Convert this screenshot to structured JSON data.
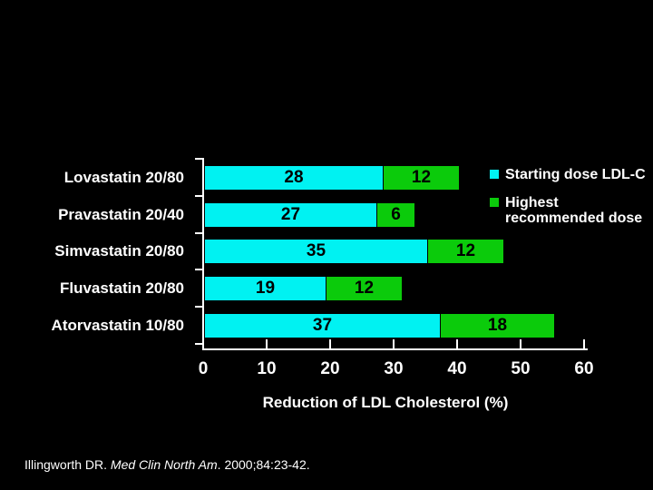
{
  "chart_data": {
    "type": "bar",
    "orientation": "horizontal",
    "stacked": true,
    "categories": [
      "Lovastatin 20/80",
      "Pravastatin 20/40",
      "Simvastatin 20/80",
      "Fluvastatin 20/80",
      "Atorvastatin 10/80"
    ],
    "series": [
      {
        "name": "Starting dose LDL-C",
        "color": "#00F2F2",
        "values": [
          28,
          27,
          35,
          19,
          37
        ]
      },
      {
        "name": "Highest recommended dose",
        "color": "#0BCB0B",
        "values": [
          12,
          6,
          12,
          12,
          18
        ]
      }
    ],
    "xlabel": "Reduction of LDL Cholesterol (%)",
    "x_ticks": [
      0,
      10,
      20,
      30,
      40,
      50,
      60
    ],
    "xlim": [
      0,
      60
    ],
    "value_labels": "inside-segments-black",
    "legend_position": "top-right",
    "background_color": "#000000",
    "text_color": "#FFFFFF"
  },
  "legend": {
    "starting_label": "Starting dose LDL-C",
    "highest_lines": [
      "Highest",
      "recommended dose"
    ]
  },
  "footer": {
    "citation_prefix": "Illingworth DR. ",
    "citation_journal": "Med Clin North Am",
    "citation_suffix": ". 2000;84:23-42."
  }
}
